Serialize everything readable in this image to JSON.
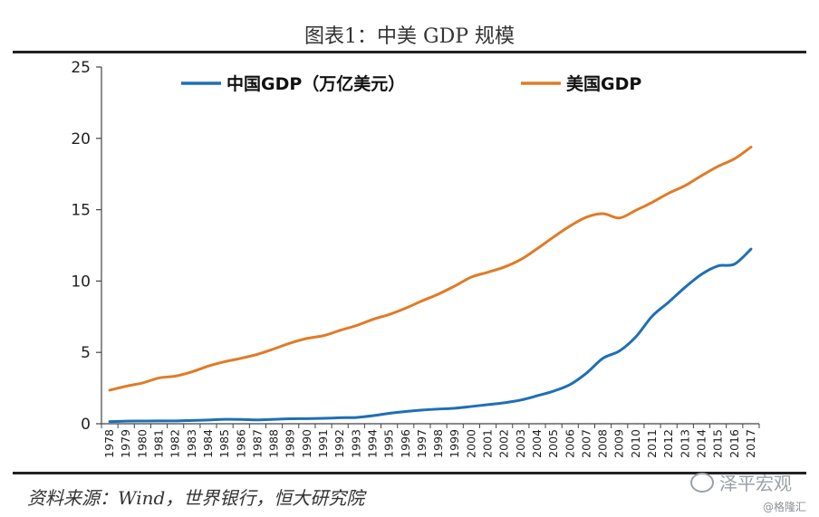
{
  "header": {
    "title": "图表1：中美 GDP 规模"
  },
  "footer": {
    "source": "资料来源：Wind，世界银行，恒大研究院"
  },
  "watermark": {
    "text": "泽平宏观",
    "sub": "@格隆汇"
  },
  "chart_data": {
    "type": "line",
    "title": "图表1：中美 GDP 规模",
    "xlabel": "",
    "ylabel": "",
    "ylim": [
      0,
      25
    ],
    "yticks": [
      "0",
      "5",
      "10",
      "15",
      "20",
      "25"
    ],
    "grid": false,
    "legend_placement": "top",
    "x": [
      "1978",
      "1979",
      "1980",
      "1981",
      "1982",
      "1983",
      "1984",
      "1985",
      "1986",
      "1987",
      "1988",
      "1989",
      "1990",
      "1991",
      "1992",
      "1993",
      "1994",
      "1995",
      "1996",
      "1997",
      "1998",
      "1999",
      "2000",
      "2001",
      "2002",
      "2003",
      "2004",
      "2005",
      "2006",
      "2007",
      "2008",
      "2009",
      "2010",
      "2011",
      "2012",
      "2013",
      "2014",
      "2015",
      "2016",
      "2017"
    ],
    "series": [
      {
        "name": "中国GDP（万亿美元）",
        "color": "#1f6fb5",
        "values": [
          0.15,
          0.18,
          0.19,
          0.2,
          0.2,
          0.23,
          0.26,
          0.31,
          0.3,
          0.27,
          0.31,
          0.35,
          0.36,
          0.38,
          0.42,
          0.44,
          0.56,
          0.73,
          0.86,
          0.96,
          1.03,
          1.09,
          1.21,
          1.34,
          1.47,
          1.66,
          1.96,
          2.29,
          2.75,
          3.55,
          4.59,
          5.1,
          6.09,
          7.55,
          8.53,
          9.57,
          10.48,
          11.06,
          11.19,
          12.24
        ]
      },
      {
        "name": "美国GDP",
        "color": "#e07b26",
        "values": [
          2.35,
          2.63,
          2.86,
          3.21,
          3.34,
          3.64,
          4.04,
          4.35,
          4.59,
          4.87,
          5.25,
          5.66,
          5.98,
          6.17,
          6.54,
          6.88,
          7.31,
          7.66,
          8.1,
          8.61,
          9.09,
          9.66,
          10.28,
          10.62,
          10.98,
          11.51,
          12.27,
          13.09,
          13.86,
          14.48,
          14.72,
          14.42,
          14.96,
          15.52,
          16.16,
          16.69,
          17.39,
          18.04,
          18.57,
          19.39
        ]
      }
    ]
  }
}
